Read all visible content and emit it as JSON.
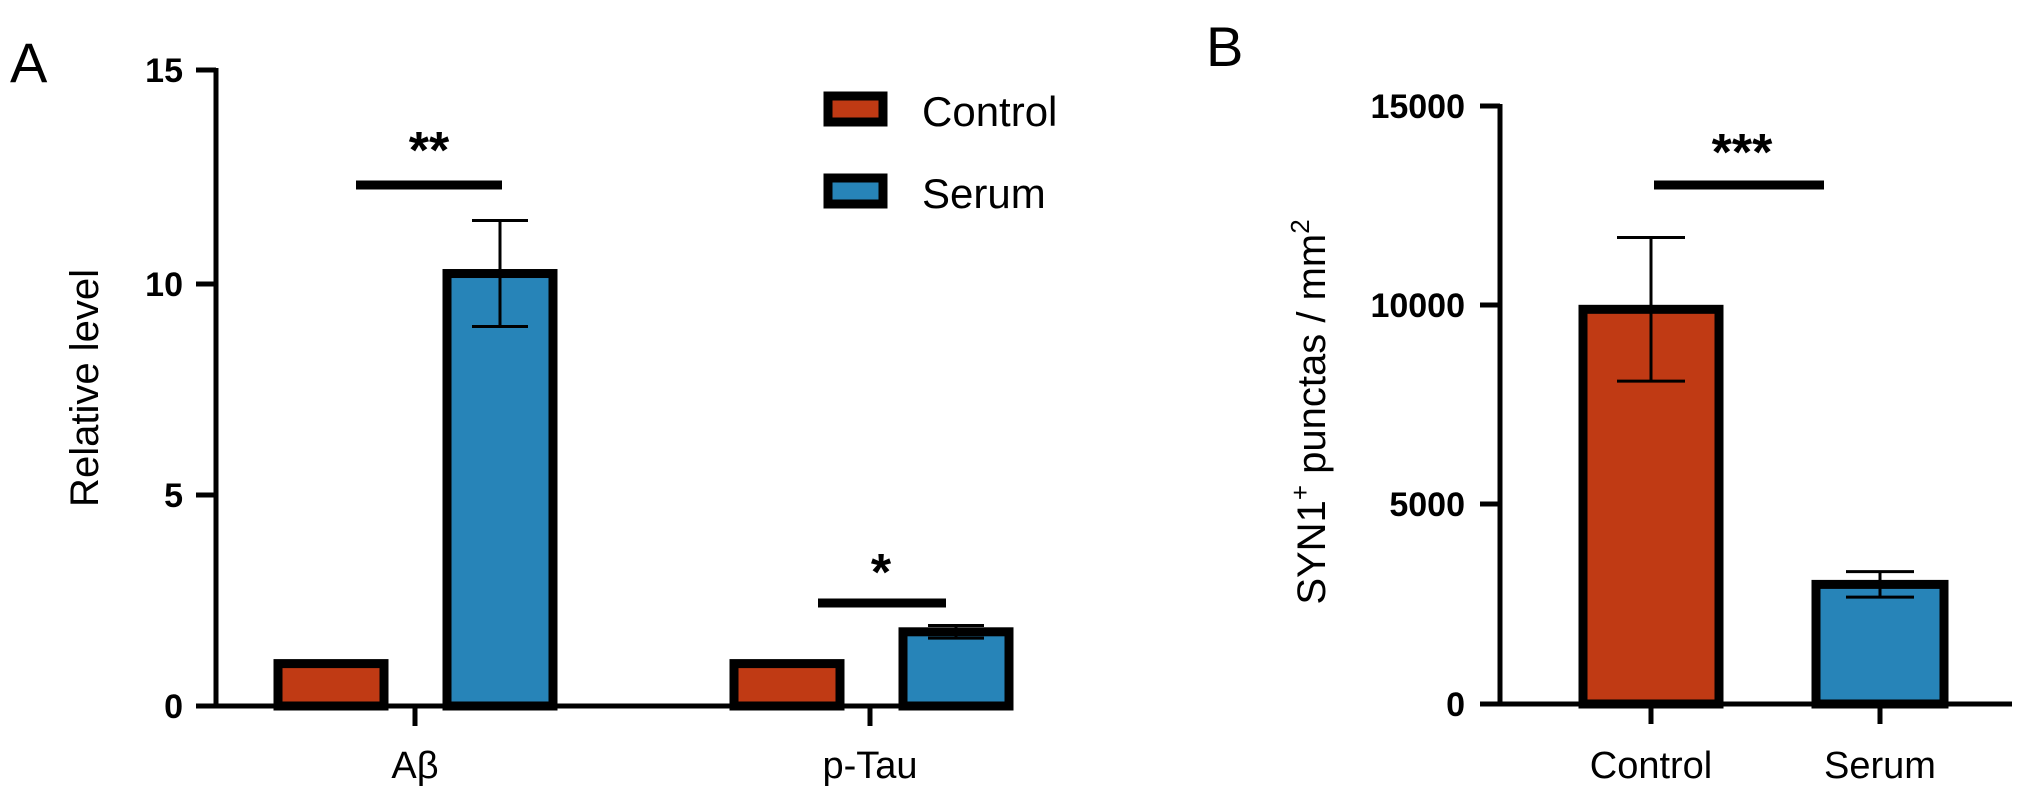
{
  "colors": {
    "control": "#C03A14",
    "serum": "#2784B8"
  },
  "chart_data": [
    {
      "panel": "A",
      "type": "bar",
      "categories": [
        "Aβ",
        "p-Tau"
      ],
      "series": [
        {
          "name": "Control",
          "values": [
            1.0,
            1.0
          ]
        },
        {
          "name": "Serum",
          "values": [
            10.2,
            1.75
          ]
        }
      ],
      "errors": {
        "Serum": [
          1.25,
          0.15
        ]
      },
      "significance": [
        "**",
        "*"
      ],
      "ylabel": "Relative level",
      "yticks": [
        "0",
        "5",
        "10",
        "15"
      ],
      "ylim": [
        0,
        15
      ],
      "legend": {
        "placement": "top-right",
        "entries": [
          "Control",
          "Serum"
        ]
      }
    },
    {
      "panel": "B",
      "type": "bar",
      "categories": [
        "Control",
        "Serum"
      ],
      "values": [
        9900,
        3000
      ],
      "errors": [
        1800,
        320
      ],
      "significance": "***",
      "ylabel": "SYN1+ punctas / mm2",
      "ylabel_parts": {
        "main": "SYN1",
        "sup1": "+",
        "mid": " punctas / mm",
        "sup2": "2"
      },
      "yticks": [
        "0",
        "5000",
        "10000",
        "15000"
      ],
      "ylim": [
        0,
        15000
      ]
    }
  ]
}
